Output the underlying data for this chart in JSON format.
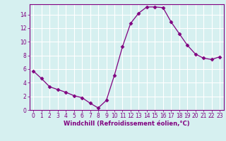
{
  "x": [
    0,
    1,
    2,
    3,
    4,
    5,
    6,
    7,
    8,
    9,
    10,
    11,
    12,
    13,
    14,
    15,
    16,
    17,
    18,
    19,
    20,
    21,
    22,
    23
  ],
  "y": [
    5.7,
    4.6,
    3.4,
    3.0,
    2.6,
    2.1,
    1.8,
    1.0,
    0.3,
    1.4,
    5.1,
    9.3,
    12.7,
    14.2,
    15.1,
    15.1,
    15.0,
    12.9,
    11.2,
    9.5,
    8.2,
    7.6,
    7.4,
    7.8
  ],
  "line_color": "#800080",
  "marker": "D",
  "marker_size": 2.5,
  "bg_color": "#d6f0f0",
  "grid_color": "#ffffff",
  "xlabel": "Windchill (Refroidissement éolien,°C)",
  "xlabel_color": "#800080",
  "tick_color": "#800080",
  "spine_color": "#800080",
  "ylim": [
    0,
    15
  ],
  "xlim": [
    -0.5,
    23.5
  ],
  "yticks": [
    0,
    2,
    4,
    6,
    8,
    10,
    12,
    14
  ],
  "xticks": [
    0,
    1,
    2,
    3,
    4,
    5,
    6,
    7,
    8,
    9,
    10,
    11,
    12,
    13,
    14,
    15,
    16,
    17,
    18,
    19,
    20,
    21,
    22,
    23
  ],
  "tick_fontsize": 5.5,
  "xlabel_fontsize": 6.0,
  "xlabel_fontweight": "bold"
}
